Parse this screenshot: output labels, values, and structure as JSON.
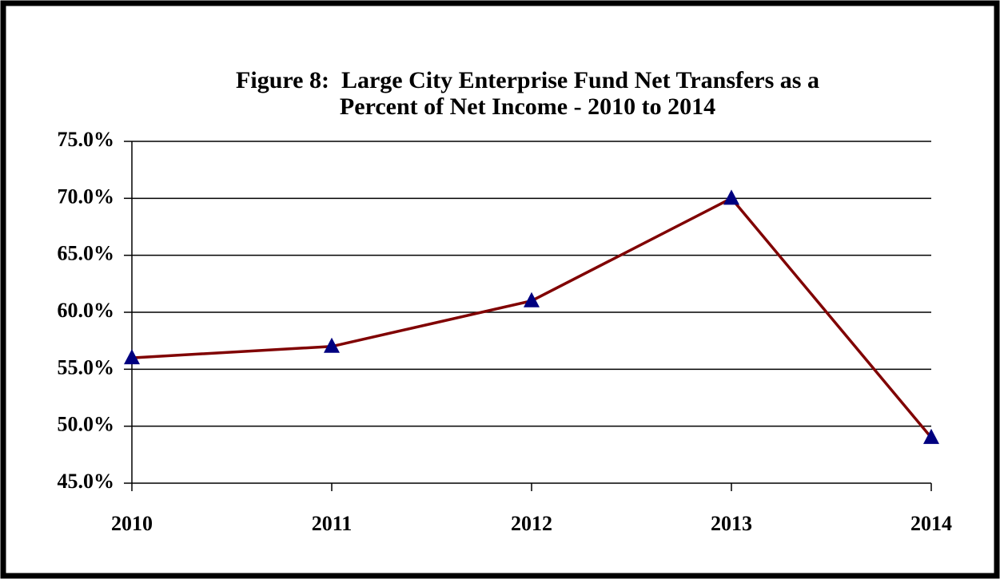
{
  "chart_data": {
    "type": "line",
    "title": [
      "Figure 8:  Large City Enterprise Fund Net Transfers as a",
      "Percent of Net Income - 2010 to 2014"
    ],
    "categories": [
      "2010",
      "2011",
      "2012",
      "2013",
      "2014"
    ],
    "series": [
      {
        "name": "Net Transfers as a Percent of Net Income",
        "color": "#800000",
        "marker_color": "#000080",
        "values": [
          56.0,
          57.0,
          61.0,
          70.0,
          49.0
        ]
      }
    ],
    "ylim": [
      45,
      75
    ],
    "yticks": [
      {
        "value": 45,
        "label": "45.0%"
      },
      {
        "value": 50,
        "label": "50.0%"
      },
      {
        "value": 55,
        "label": "55.0%"
      },
      {
        "value": 60,
        "label": "60.0%"
      },
      {
        "value": 65,
        "label": "65.0%"
      },
      {
        "value": 70,
        "label": "70.0%"
      },
      {
        "value": 75,
        "label": "75.0%"
      }
    ],
    "grid": true
  }
}
